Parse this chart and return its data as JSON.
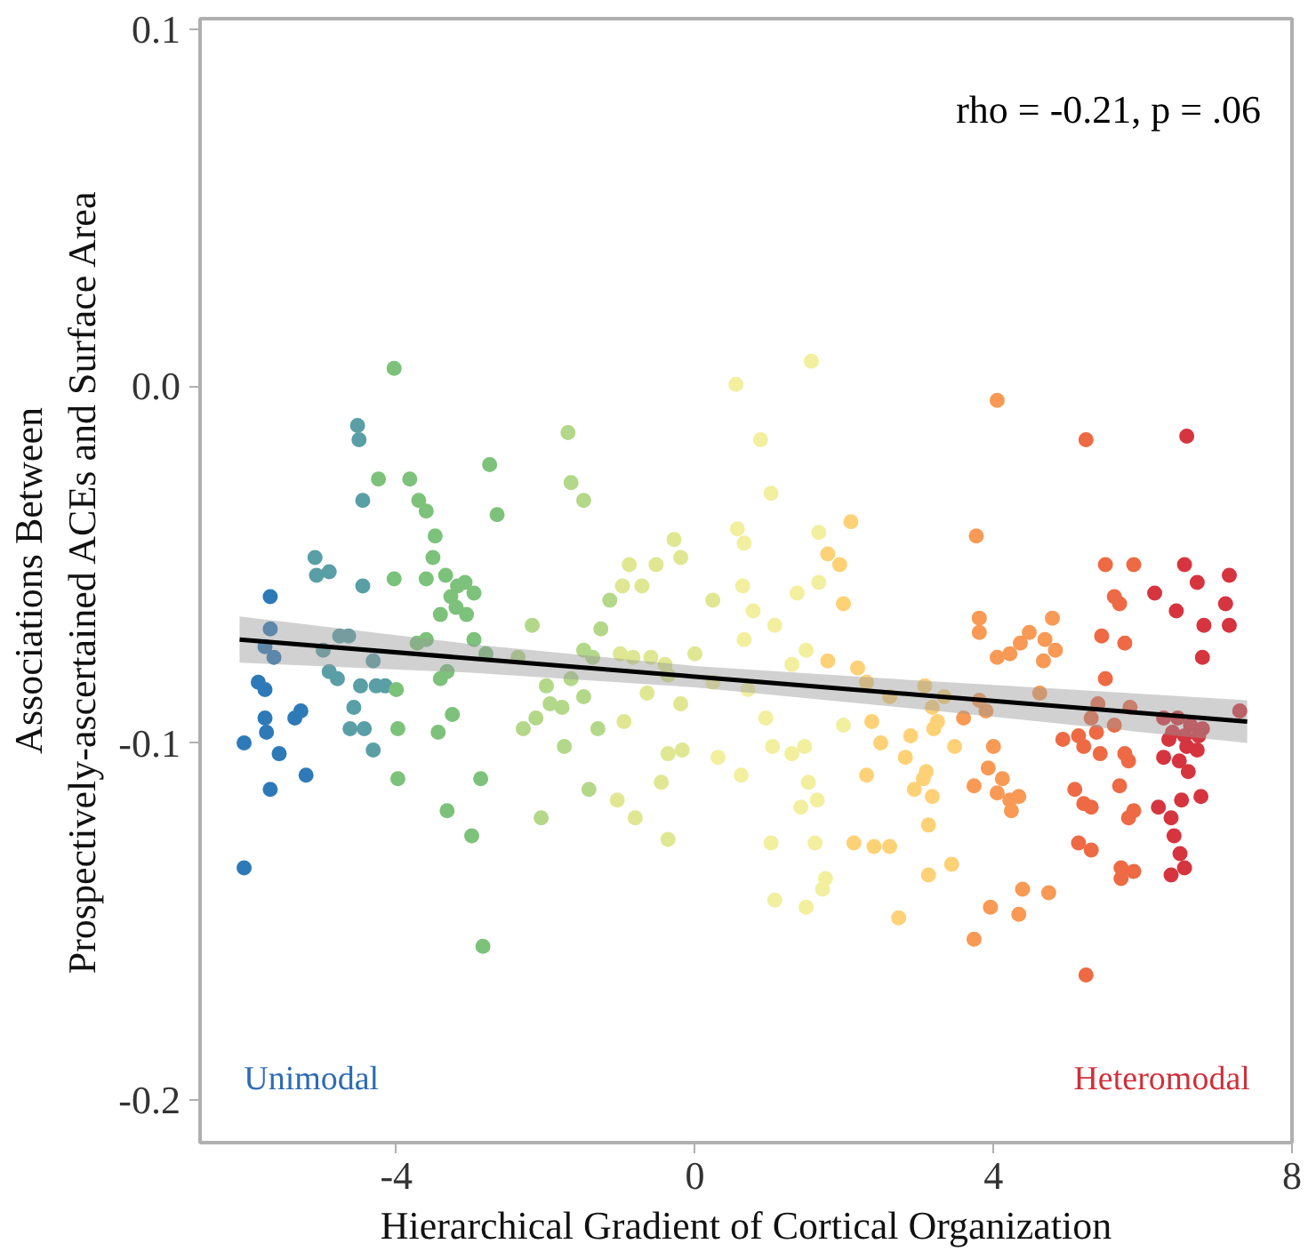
{
  "chart_data": {
    "type": "scatter",
    "xlabel": "Hierarchical Gradient of Cortical Organization",
    "ylabel": "Associations Between\nProspectively-ascertained ACEs and Surface Area",
    "annotations": [
      "rho = -0.21, p = .06",
      "Unimodal",
      "Heteromodal"
    ],
    "xlim": [
      -6.63,
      8.0
    ],
    "ylim": [
      -0.212,
      0.103
    ],
    "xticks": [
      -4,
      0,
      4,
      8
    ],
    "yticks": [
      -0.2,
      -0.1,
      {
        "value": 0.0,
        "label": "0.0"
      },
      0.1
    ],
    "grid": false,
    "marker": "circle",
    "series": [
      {
        "color": "#2e7ab8",
        "x": [
          -6.04,
          -6.04,
          -5.85,
          -5.76,
          -5.69,
          -5.76,
          -5.64,
          -5.76,
          -5.74,
          -5.69,
          -5.57,
          -5.36,
          -5.28,
          -5.21,
          -5.69
        ],
        "values": [
          -0.135,
          -0.1,
          -0.083,
          -0.085,
          -0.059,
          -0.073,
          -0.076,
          -0.093,
          -0.097,
          -0.113,
          -0.103,
          -0.093,
          -0.091,
          -0.109,
          -0.068
        ]
      },
      {
        "color": "#5a9fa6",
        "x": [
          -5.07,
          -4.9,
          -5.09,
          -4.9,
          -4.98,
          -4.79,
          -4.76,
          -4.64,
          -4.48,
          -4.57,
          -4.62,
          -4.43,
          -4.31,
          -4.45,
          -4.27,
          -4.15,
          -4.31,
          -4.45,
          -4.5,
          -4.52
        ],
        "values": [
          -0.053,
          -0.052,
          -0.048,
          -0.08,
          -0.074,
          -0.082,
          -0.07,
          -0.07,
          -0.084,
          -0.09,
          -0.096,
          -0.096,
          -0.077,
          -0.056,
          -0.084,
          -0.084,
          -0.102,
          -0.032,
          -0.015,
          -0.011
        ]
      },
      {
        "color": "#7dc27b",
        "x": [
          -4.03,
          -4.24,
          -4.03,
          -4.0,
          -3.98,
          -3.98,
          -3.82,
          -3.7,
          -3.6,
          -3.48,
          -3.6,
          -3.51,
          -3.34,
          -3.27,
          -3.08,
          -2.96,
          -3.41,
          -3.2,
          -3.18,
          -3.6,
          -3.72,
          -3.32,
          -2.96,
          -2.8,
          -3.25,
          -3.44,
          -2.87,
          -3.32,
          -2.99,
          -2.84,
          -2.75,
          -2.65,
          -3.06,
          -3.41
        ],
        "values": [
          0.005,
          -0.026,
          -0.054,
          -0.085,
          -0.096,
          -0.11,
          -0.026,
          -0.032,
          -0.035,
          -0.042,
          -0.054,
          -0.048,
          -0.053,
          -0.059,
          -0.055,
          -0.058,
          -0.064,
          -0.062,
          -0.056,
          -0.071,
          -0.072,
          -0.08,
          -0.071,
          -0.075,
          -0.092,
          -0.097,
          -0.11,
          -0.119,
          -0.126,
          -0.157,
          -0.022,
          -0.036,
          -0.064,
          -0.082
        ]
      },
      {
        "color": "#b3d889",
        "x": [
          -1.7,
          -1.66,
          -1.49,
          -1.66,
          -1.49,
          -1.26,
          -1.14,
          -2.18,
          -2.37,
          -1.99,
          -1.94,
          -2.13,
          -2.3,
          -1.78,
          -1.49,
          -1.3,
          -1.42,
          -2.06,
          -1.37,
          -1.75
        ],
        "values": [
          -0.013,
          -0.027,
          -0.032,
          -0.082,
          -0.074,
          -0.068,
          -0.06,
          -0.067,
          -0.076,
          -0.084,
          -0.089,
          -0.093,
          -0.096,
          -0.09,
          -0.087,
          -0.096,
          -0.113,
          -0.121,
          -0.076,
          -0.101
        ]
      },
      {
        "color": "#dfe792",
        "x": [
          -0.88,
          -0.97,
          -0.83,
          -0.71,
          -0.59,
          -0.4,
          -0.36,
          -0.52,
          -0.28,
          -0.19,
          -0.19,
          -0.36,
          -0.17,
          -1.0,
          -0.95,
          -0.64,
          -0.45,
          -1.04,
          -0.8,
          -0.36,
          0.0,
          0.24
        ],
        "values": [
          -0.05,
          -0.056,
          -0.076,
          -0.056,
          -0.076,
          -0.078,
          -0.081,
          -0.05,
          -0.043,
          -0.048,
          -0.089,
          -0.103,
          -0.102,
          -0.075,
          -0.094,
          -0.086,
          -0.111,
          -0.116,
          -0.121,
          -0.127,
          -0.075,
          -0.06
        ]
      },
      {
        "color": "#f2ef9f",
        "x": [
          0.55,
          0.57,
          0.88,
          1.02,
          0.66,
          0.78,
          0.64,
          1.07,
          0.24,
          0.66,
          0.71,
          0.95,
          1.04,
          0.62,
          0.31,
          1.56,
          1.66,
          1.37,
          1.66,
          1.3,
          1.49,
          1.3,
          1.47,
          1.52,
          1.42,
          1.64,
          1.61,
          1.02,
          1.07,
          1.49,
          1.75,
          1.71,
          1.99
        ],
        "values": [
          0.0005,
          -0.04,
          -0.015,
          -0.03,
          -0.044,
          -0.063,
          -0.056,
          -0.067,
          -0.083,
          -0.071,
          -0.085,
          -0.093,
          -0.101,
          -0.109,
          -0.104,
          0.007,
          -0.041,
          -0.058,
          -0.055,
          -0.078,
          -0.074,
          -0.103,
          -0.101,
          -0.111,
          -0.118,
          -0.116,
          -0.128,
          -0.128,
          -0.144,
          -0.146,
          -0.138,
          -0.141,
          -0.095
        ]
      },
      {
        "color": "#fdd277",
        "x": [
          2.09,
          1.78,
          1.94,
          1.99,
          1.78,
          2.18,
          2.37,
          2.3,
          2.4,
          2.13,
          2.49,
          2.61,
          2.73,
          2.3,
          2.82,
          2.89,
          3.06,
          2.94,
          2.61,
          3.18,
          3.1,
          3.2,
          3.18,
          3.34,
          3.25,
          3.08,
          3.13,
          3.44,
          3.48,
          3.13
        ],
        "values": [
          -0.038,
          -0.047,
          -0.05,
          -0.061,
          -0.077,
          -0.079,
          -0.094,
          -0.109,
          -0.129,
          -0.128,
          -0.1,
          -0.087,
          -0.149,
          -0.083,
          -0.104,
          -0.098,
          -0.11,
          -0.113,
          -0.129,
          -0.115,
          -0.108,
          -0.096,
          -0.09,
          -0.087,
          -0.094,
          -0.084,
          -0.137,
          -0.134,
          -0.101,
          -0.123
        ]
      },
      {
        "color": "#f89a55",
        "x": [
          4.05,
          3.77,
          3.81,
          3.81,
          3.81,
          3.9,
          3.93,
          3.74,
          3.74,
          3.6,
          3.96,
          4.05,
          4.22,
          4.36,
          4.48,
          4.79,
          4.69,
          4.67,
          4.0,
          4.12,
          4.05,
          4.22,
          4.24,
          4.34,
          4.34,
          4.39,
          4.74,
          4.62,
          4.83
        ],
        "values": [
          -0.004,
          -0.042,
          -0.065,
          -0.069,
          -0.088,
          -0.091,
          -0.107,
          -0.112,
          -0.155,
          -0.093,
          -0.146,
          -0.076,
          -0.075,
          -0.072,
          -0.069,
          -0.065,
          -0.071,
          -0.077,
          -0.101,
          -0.11,
          -0.114,
          -0.116,
          -0.119,
          -0.115,
          -0.148,
          -0.141,
          -0.142,
          -0.086,
          -0.074
        ]
      },
      {
        "color": "#ee6a45",
        "x": [
          5.24,
          5.5,
          5.62,
          5.69,
          5.76,
          5.88,
          5.5,
          5.45,
          5.4,
          5.14,
          4.93,
          5.31,
          5.38,
          5.62,
          5.71,
          5.83,
          5.21,
          5.43,
          5.09,
          5.21,
          5.31,
          5.14,
          5.31,
          5.76,
          5.81,
          5.69,
          5.88,
          5.71,
          5.88,
          5.71,
          5.24,
          5.81
        ],
        "values": [
          -0.015,
          -0.05,
          -0.059,
          -0.061,
          -0.072,
          -0.05,
          -0.082,
          -0.07,
          -0.089,
          -0.098,
          -0.099,
          -0.093,
          -0.097,
          -0.095,
          null,
          -0.09,
          -0.101,
          -0.103,
          -0.113,
          -0.117,
          -0.118,
          -0.128,
          -0.13,
          -0.103,
          -0.105,
          -0.112,
          -0.119,
          -0.135,
          -0.136,
          -0.138,
          -0.165,
          -0.121
        ]
      },
      {
        "color": "#d6353f",
        "x": [
          6.59,
          6.56,
          6.73,
          6.16,
          6.45,
          7.16,
          7.11,
          7.16,
          6.82,
          6.8,
          6.28,
          6.47,
          6.64,
          6.4,
          6.56,
          6.8,
          6.75,
          6.35,
          6.59,
          6.49,
          6.73,
          6.61,
          7.3,
          6.38,
          6.42,
          6.21,
          6.52,
          6.5,
          6.56,
          6.38,
          6.78,
          6.28
        ],
        "values": [
          -0.014,
          -0.05,
          -0.055,
          -0.058,
          -0.063,
          -0.053,
          -0.061,
          -0.067,
          -0.067,
          -0.076,
          -0.093,
          -0.093,
          -0.095,
          -0.097,
          -0.098,
          -0.096,
          -0.098,
          -0.099,
          -0.101,
          -0.105,
          -0.102,
          -0.108,
          -0.091,
          -0.121,
          -0.126,
          -0.118,
          -0.116,
          -0.131,
          -0.135,
          -0.137,
          -0.115,
          -0.104
        ]
      },
      {
        "type": "line",
        "marker": "none",
        "color": "#000000",
        "x": [
          -6.1,
          -3,
          0,
          3,
          7.4
        ],
        "values": [
          -0.071,
          -0.0763,
          -0.0814,
          -0.0865,
          -0.094
        ],
        "lower": [
          -0.0775,
          -0.0803,
          -0.0844,
          -0.0905,
          -0.1
        ],
        "upper": [
          -0.0645,
          -0.0723,
          -0.0784,
          -0.0825,
          -0.088
        ]
      }
    ]
  }
}
